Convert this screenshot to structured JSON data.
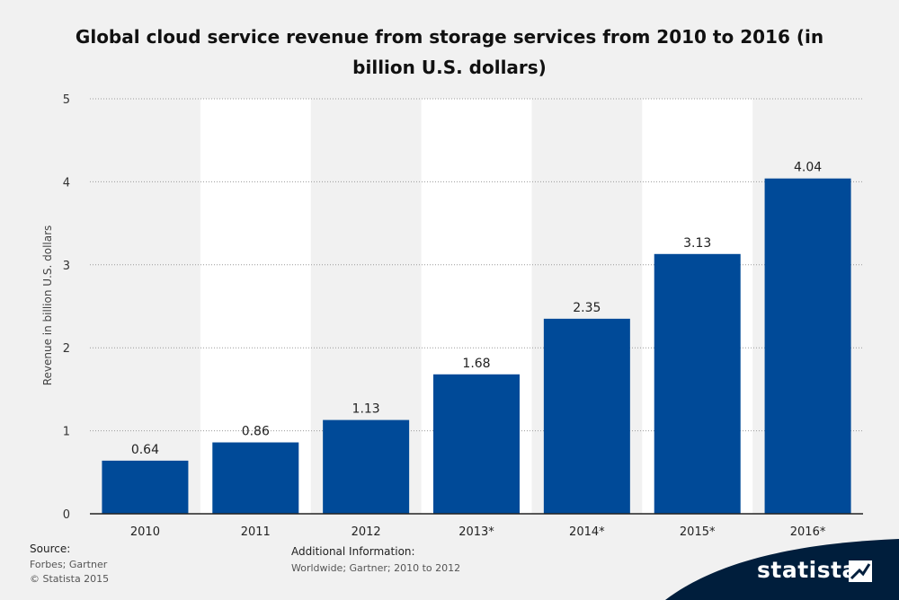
{
  "chart_data": {
    "type": "bar",
    "title": "Global cloud service revenue from storage services from 2010 to 2016 (in billion U.S. dollars)",
    "xlabel": "",
    "ylabel": "Revenue in billion U.S. dollars",
    "categories": [
      "2010",
      "2011",
      "2012",
      "2013*",
      "2014*",
      "2015*",
      "2016*"
    ],
    "values": [
      0.64,
      0.86,
      1.13,
      1.68,
      2.35,
      3.13,
      4.04
    ],
    "value_labels": [
      "0.64",
      "0.86",
      "1.13",
      "1.68",
      "2.35",
      "3.13",
      "4.04"
    ],
    "ylim": [
      0,
      5
    ],
    "yticks": [
      0,
      1,
      2,
      3,
      4,
      5
    ],
    "grid": true,
    "legend": "none",
    "bar_color": "#004a98"
  },
  "footer": {
    "source_label": "Source:",
    "source_lines": [
      "Forbes; Gartner",
      "© Statista 2015"
    ],
    "additional_label": "Additional Information:",
    "additional_text": "Worldwide; Gartner; 2010 to 2012"
  },
  "brand": {
    "name": "statista",
    "icon": "statista-logo-icon",
    "color": "#001e3c"
  }
}
